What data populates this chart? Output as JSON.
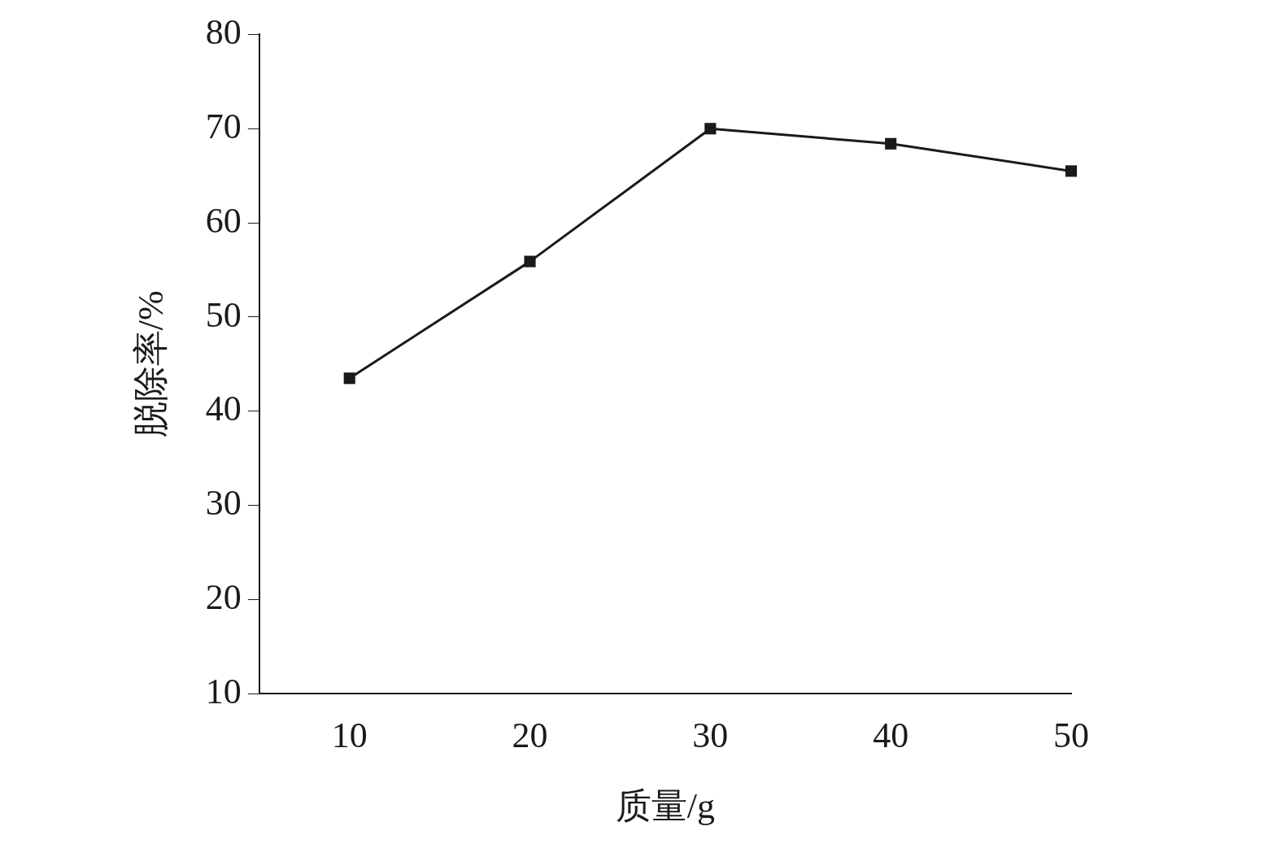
{
  "chart_data": {
    "type": "line",
    "xlabel": "质量/g",
    "ylabel": "脱除率/%",
    "x": [
      10,
      20,
      30,
      40,
      50
    ],
    "series": [
      {
        "color": "#1a1a1a",
        "values": [
          43.5,
          55.9,
          70,
          68.4,
          65.5
        ]
      }
    ],
    "xlim": [
      5,
      50
    ],
    "xticks": [
      10,
      20,
      30,
      40,
      50
    ],
    "ylim": [
      10,
      80
    ],
    "yticks": [
      10,
      20,
      30,
      40,
      50,
      60,
      70,
      80
    ],
    "grid": false,
    "legend": false,
    "marker": "square",
    "line_style": "solid"
  }
}
